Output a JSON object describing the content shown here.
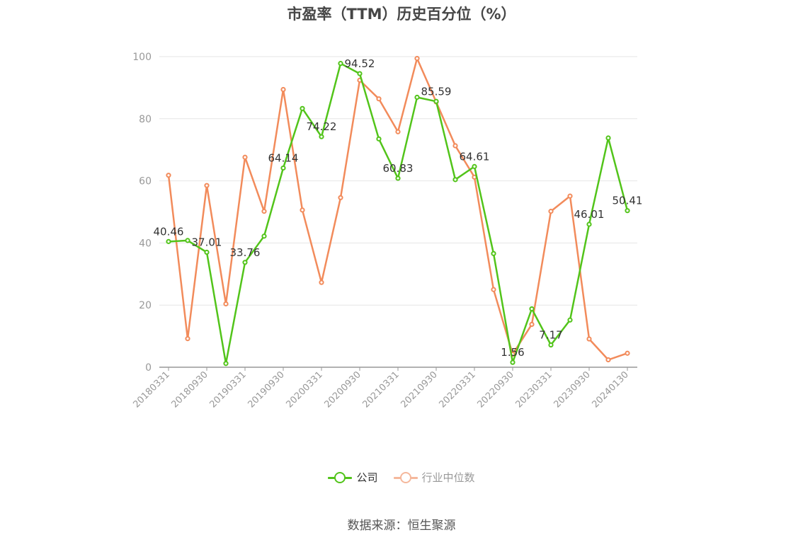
{
  "chart_data": {
    "type": "line",
    "title": "市盈率（TTM）历史百分位（%）",
    "ylim": [
      0,
      100
    ],
    "yticks": [
      0,
      20,
      40,
      60,
      80,
      100
    ],
    "grid": true,
    "legend_position": "bottom",
    "x_tick_labels": [
      "20180331",
      "20180930",
      "20190331",
      "20190930",
      "20200331",
      "20200930",
      "20210331",
      "20210930",
      "20220331",
      "20220930",
      "20230331",
      "20230930",
      "20240130"
    ],
    "series": [
      {
        "name": "公司",
        "color": "#52c41a",
        "values": [
          40.46,
          40.8,
          37.01,
          1.2,
          33.76,
          42.2,
          64.14,
          83.3,
          74.22,
          97.8,
          94.52,
          73.5,
          60.83,
          86.9,
          85.59,
          60.4,
          64.61,
          36.6,
          1.56,
          18.8,
          7.17,
          15.2,
          46.01,
          73.8,
          50.41
        ],
        "data_labels": {
          "0": "40.46",
          "2": "37.01",
          "4": "33.76",
          "6": "64.14",
          "8": "74.22",
          "10": "94.52",
          "12": "60.83",
          "14": "85.59",
          "16": "64.61",
          "18": "1.56",
          "20": "7.17",
          "22": "46.01",
          "24": "50.41"
        }
      },
      {
        "name": "行业中位数",
        "color": "#f28b5b",
        "values": [
          61.8,
          9.2,
          58.5,
          20.4,
          67.6,
          50.2,
          89.4,
          50.6,
          27.3,
          54.6,
          92.4,
          86.4,
          75.8,
          99.4,
          85.4,
          71.3,
          61.2,
          25.0,
          4.2,
          13.8,
          50.2,
          55.1,
          9.1,
          2.4,
          4.5
        ]
      }
    ]
  },
  "legend": {
    "items": [
      {
        "label": "公司",
        "color": "#52c41a",
        "state": "on"
      },
      {
        "label": "行业中位数",
        "color": "#f5b89c",
        "state": "off"
      }
    ]
  },
  "source": "数据来源：恒生聚源"
}
